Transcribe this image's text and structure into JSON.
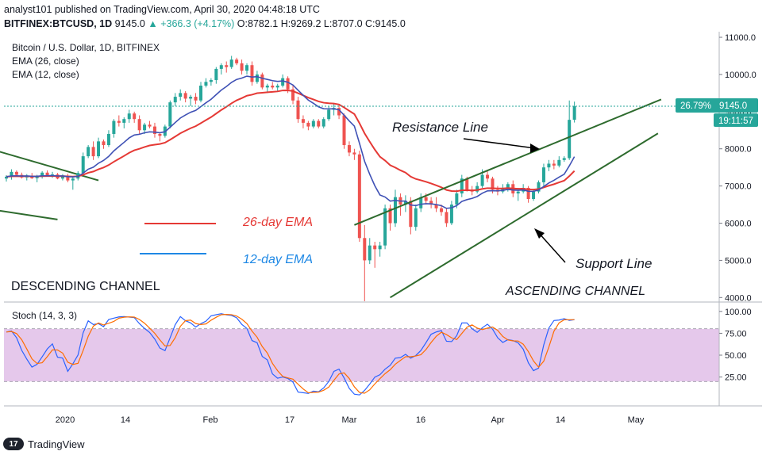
{
  "header": {
    "publish_line": "analyst101 published on TradingView.com, April 30, 2020 04:48:18 UTC",
    "symbol": "BITFINEX:BTCUSD, 1D",
    "last": "9145.0",
    "change": "+366.3 (+4.17%)",
    "ohlc": "O:8782.1 H:9269.2 L:8707.0 C:9145.0"
  },
  "legend": {
    "title": "Bitcoin / U.S. Dollar, 1D, BITFINEX",
    "ema26": "EMA (26, close)",
    "ema12": "EMA (12, close)",
    "stoch": "Stoch (14, 3, 3)"
  },
  "annotations": {
    "resistance": "Resistance Line",
    "support": "Support Line",
    "descending": "DESCENDING CHANNEL",
    "ascending": "ASCENDING CHANNEL",
    "ema26_label": "26-day EMA",
    "ema12_label": "12-day EMA"
  },
  "price_tag": {
    "percent": "26.79%",
    "price": "9145.0",
    "countdown": "19:11:57"
  },
  "branding": {
    "name": "TradingView"
  },
  "colors": {
    "up": "#26a69a",
    "down": "#ef5350",
    "ema26": "#e53935",
    "ema12": "#3f51b5",
    "channel": "#2e6b2e",
    "stoch_band": "#e1bee7"
  },
  "chart_data": {
    "type": "candlestick",
    "title": "Bitcoin / U.S. Dollar, 1D, BITFINEX",
    "price_axis": {
      "min": 4000,
      "max": 11000,
      "ticks": [
        "11000.0",
        "10000.0",
        "9000.0",
        "8000.0",
        "7000.0",
        "6000.0",
        "5000.0",
        "4000.0"
      ]
    },
    "stoch_axis": {
      "min": 0,
      "max": 100,
      "ticks": [
        "100.00",
        "75.00",
        "50.00",
        "25.00"
      ]
    },
    "x_ticks": [
      "2020",
      "14",
      "Feb",
      "17",
      "Mar",
      "16",
      "Apr",
      "14",
      "May"
    ],
    "ohlc": [
      [
        7200,
        7290,
        7120,
        7250
      ],
      [
        7250,
        7450,
        7170,
        7380
      ],
      [
        7380,
        7420,
        7250,
        7300
      ],
      [
        7300,
        7360,
        7200,
        7230
      ],
      [
        7230,
        7320,
        7150,
        7280
      ],
      [
        7280,
        7350,
        7190,
        7210
      ],
      [
        7210,
        7300,
        7100,
        7250
      ],
      [
        7250,
        7400,
        7200,
        7360
      ],
      [
        7360,
        7420,
        7250,
        7290
      ],
      [
        7290,
        7380,
        7220,
        7310
      ],
      [
        7310,
        7350,
        7180,
        7200
      ],
      [
        7200,
        7320,
        7150,
        7280
      ],
      [
        7280,
        7330,
        7100,
        7150
      ],
      [
        7150,
        7250,
        6900,
        7200
      ],
      [
        7200,
        7400,
        7150,
        7350
      ],
      [
        7350,
        7900,
        7300,
        7800
      ],
      [
        7800,
        8100,
        7750,
        8050
      ],
      [
        8050,
        8200,
        7700,
        7800
      ],
      [
        7800,
        8300,
        7750,
        8200
      ],
      [
        8200,
        8250,
        8000,
        8100
      ],
      [
        8100,
        8500,
        8050,
        8400
      ],
      [
        8400,
        8800,
        8300,
        8750
      ],
      [
        8750,
        8900,
        8600,
        8700
      ],
      [
        8700,
        8850,
        8550,
        8800
      ],
      [
        8800,
        9050,
        8700,
        8950
      ],
      [
        8950,
        9000,
        8700,
        8800
      ],
      [
        8800,
        8900,
        8400,
        8500
      ],
      [
        8500,
        8700,
        8400,
        8650
      ],
      [
        8650,
        8750,
        8550,
        8600
      ],
      [
        8600,
        8700,
        8300,
        8400
      ],
      [
        8400,
        8450,
        8200,
        8350
      ],
      [
        8350,
        8650,
        8300,
        8600
      ],
      [
        8600,
        9300,
        8550,
        9250
      ],
      [
        9250,
        9500,
        9150,
        9400
      ],
      [
        9400,
        9600,
        9300,
        9500
      ],
      [
        9500,
        9550,
        9250,
        9350
      ],
      [
        9350,
        9450,
        9150,
        9400
      ],
      [
        9400,
        9500,
        9200,
        9300
      ],
      [
        9300,
        9800,
        9250,
        9700
      ],
      [
        9700,
        9900,
        9650,
        9800
      ],
      [
        9800,
        9900,
        9700,
        9850
      ],
      [
        9850,
        10200,
        9750,
        10150
      ],
      [
        10150,
        10300,
        10000,
        10250
      ],
      [
        10250,
        10350,
        10050,
        10200
      ],
      [
        10200,
        10500,
        10150,
        10400
      ],
      [
        10400,
        10450,
        10250,
        10300
      ],
      [
        10300,
        10400,
        10000,
        10100
      ],
      [
        10100,
        10300,
        10000,
        10250
      ],
      [
        10250,
        10350,
        9700,
        9800
      ],
      [
        9800,
        10100,
        9750,
        10000
      ],
      [
        10000,
        10050,
        9600,
        9650
      ],
      [
        9650,
        9750,
        9500,
        9700
      ],
      [
        9700,
        9800,
        9600,
        9650
      ],
      [
        9650,
        9750,
        9550,
        9700
      ],
      [
        9700,
        10000,
        9650,
        9900
      ],
      [
        9900,
        9950,
        9500,
        9600
      ],
      [
        9600,
        9700,
        9200,
        9300
      ],
      [
        9300,
        9400,
        8700,
        8800
      ],
      [
        8800,
        8900,
        8550,
        8700
      ],
      [
        8700,
        8750,
        8500,
        8600
      ],
      [
        8600,
        8800,
        8550,
        8750
      ],
      [
        8750,
        8800,
        8550,
        8600
      ],
      [
        8600,
        8850,
        8550,
        8800
      ],
      [
        8800,
        9150,
        8750,
        9050
      ],
      [
        9050,
        9200,
        8900,
        9100
      ],
      [
        9100,
        9200,
        8800,
        8900
      ],
      [
        8900,
        8950,
        8000,
        8100
      ],
      [
        8100,
        8200,
        7800,
        7900
      ],
      [
        7900,
        8000,
        7700,
        7850
      ],
      [
        7850,
        7950,
        5500,
        5600
      ],
      [
        5600,
        5950,
        3900,
        5000
      ],
      [
        5000,
        5600,
        4900,
        5400
      ],
      [
        5400,
        5500,
        4800,
        5300
      ],
      [
        5300,
        5500,
        5100,
        5400
      ],
      [
        5400,
        6500,
        5300,
        6400
      ],
      [
        6400,
        6500,
        5800,
        6000
      ],
      [
        6000,
        6900,
        5900,
        6700
      ],
      [
        6700,
        6800,
        6200,
        6500
      ],
      [
        6500,
        6750,
        6300,
        6600
      ],
      [
        6600,
        6700,
        5700,
        5900
      ],
      [
        5900,
        6500,
        5800,
        6400
      ],
      [
        6400,
        6800,
        6300,
        6700
      ],
      [
        6700,
        6800,
        6500,
        6600
      ],
      [
        6600,
        6700,
        6400,
        6500
      ],
      [
        6500,
        6700,
        6300,
        6400
      ],
      [
        6400,
        6500,
        6200,
        6300
      ],
      [
        6300,
        6400,
        5900,
        6000
      ],
      [
        6000,
        6600,
        5950,
        6500
      ],
      [
        6500,
        6900,
        6400,
        6800
      ],
      [
        6800,
        7300,
        6700,
        7200
      ],
      [
        7200,
        7250,
        6850,
        6900
      ],
      [
        6900,
        7000,
        6750,
        6850
      ],
      [
        6850,
        7100,
        6800,
        7000
      ],
      [
        7000,
        7450,
        6950,
        7300
      ],
      [
        7300,
        7400,
        7100,
        7200
      ],
      [
        7200,
        7250,
        6800,
        6900
      ],
      [
        6900,
        7000,
        6750,
        6850
      ],
      [
        6850,
        7050,
        6800,
        6950
      ],
      [
        6950,
        7100,
        6850,
        7050
      ],
      [
        7050,
        7150,
        6700,
        6800
      ],
      [
        6800,
        6950,
        6600,
        6850
      ],
      [
        6850,
        7050,
        6800,
        6950
      ],
      [
        6950,
        7000,
        6550,
        6650
      ],
      [
        6650,
        6900,
        6600,
        6850
      ],
      [
        6850,
        7150,
        6800,
        7100
      ],
      [
        7100,
        7600,
        7000,
        7500
      ],
      [
        7500,
        7700,
        7400,
        7600
      ],
      [
        7600,
        7700,
        7450,
        7550
      ],
      [
        7550,
        7800,
        7500,
        7700
      ],
      [
        7700,
        7800,
        7650,
        7750
      ],
      [
        7750,
        9300,
        7700,
        8780
      ],
      [
        8782.1,
        9269.2,
        8707,
        9145
      ]
    ],
    "resistance_line": {
      "from": {
        "index": 68,
        "price": 5950
      },
      "to": {
        "index": 123,
        "price": 9050
      }
    },
    "support_line": {
      "from": {
        "index": 75,
        "price": 4000
      },
      "to": {
        "index": 123,
        "price": 8050
      }
    },
    "descending_line_upper": {
      "from": {
        "index": -2,
        "price": 7950
      },
      "to": {
        "index": 18,
        "price": 7150
      }
    },
    "descending_line_lower": {
      "from": {
        "index": -2,
        "price": 6350
      },
      "to": {
        "index": 10,
        "price": 6100
      }
    }
  }
}
